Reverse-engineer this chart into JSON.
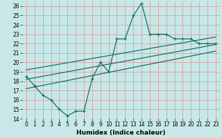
{
  "xlabel": "Humidex (Indice chaleur)",
  "background_color": "#c8e8e8",
  "grid_color": "#d4a0a0",
  "line_color": "#1a6e60",
  "xlim": [
    -0.5,
    23.5
  ],
  "ylim": [
    14,
    26.5
  ],
  "yticks": [
    14,
    15,
    16,
    17,
    18,
    19,
    20,
    21,
    22,
    23,
    24,
    25,
    26
  ],
  "xticks": [
    0,
    1,
    2,
    3,
    4,
    5,
    6,
    7,
    8,
    9,
    10,
    11,
    12,
    13,
    14,
    15,
    16,
    17,
    18,
    19,
    20,
    21,
    22,
    23
  ],
  "main_line_x": [
    0,
    1,
    2,
    3,
    4,
    5,
    6,
    7,
    8,
    9,
    10,
    11,
    12,
    13,
    14,
    15,
    16,
    17,
    18,
    19,
    20,
    21,
    22,
    23
  ],
  "main_line_y": [
    18.5,
    17.5,
    16.5,
    16.0,
    15.0,
    14.3,
    14.8,
    14.8,
    18.3,
    20.0,
    19.0,
    22.5,
    22.5,
    25.0,
    26.3,
    23.0,
    23.0,
    23.0,
    22.5,
    22.5,
    22.5,
    22.0,
    22.0,
    22.0
  ],
  "upper_line_x": [
    0,
    23
  ],
  "upper_line_y": [
    19.2,
    22.7
  ],
  "lower_line_x": [
    0,
    23
  ],
  "lower_line_y": [
    17.2,
    21.2
  ],
  "mid_line_x": [
    0,
    23
  ],
  "mid_line_y": [
    18.2,
    21.9
  ]
}
